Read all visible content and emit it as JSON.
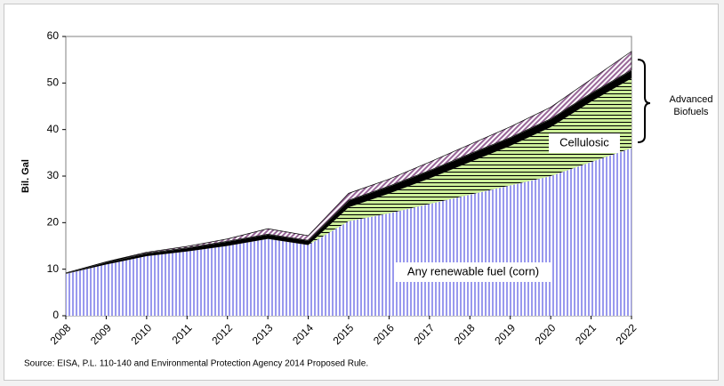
{
  "chart_data": {
    "type": "stacked_area",
    "y_label": "Bil. Gal",
    "categories": [
      "2008",
      "2009",
      "2010",
      "2011",
      "2012",
      "2013",
      "2014",
      "2015",
      "2016",
      "2017",
      "2018",
      "2019",
      "2020",
      "2021",
      "2022"
    ],
    "series": [
      {
        "name": "Any renewable fuel (corn)",
        "color": "#9999ee",
        "values": [
          9,
          11,
          12.8,
          13.8,
          15,
          16.5,
          15.2,
          20.3,
          22,
          24,
          26,
          28,
          30,
          33,
          36
        ]
      },
      {
        "name": "Cellulosic",
        "color": "#ccee99",
        "values": [
          0,
          0,
          0,
          0,
          0,
          0,
          0,
          3,
          4.25,
          5.5,
          7,
          8.5,
          10.5,
          13,
          15
        ]
      },
      {
        "color": "#000000",
        "values": [
          0.2,
          0.5,
          0.65,
          0.8,
          1,
          1,
          1,
          1.5,
          1.6,
          1.7,
          1.8,
          1.8,
          1.8,
          1.8,
          1.8
        ]
      },
      {
        "color": "#996699",
        "values": [
          0,
          0.1,
          0.2,
          0.3,
          0.5,
          1.2,
          1,
          1.5,
          1.5,
          1.8,
          2,
          2.3,
          2.5,
          3,
          4
        ]
      }
    ],
    "annotation": "Advanced Biofuels",
    "ylim": [
      0,
      60
    ],
    "yticks": [
      0,
      10,
      20,
      30,
      40,
      50,
      60
    ],
    "source": "Source:  EISA, P.L. 110-140 and  Environmental Protection Agency 2014 Proposed Rule."
  }
}
